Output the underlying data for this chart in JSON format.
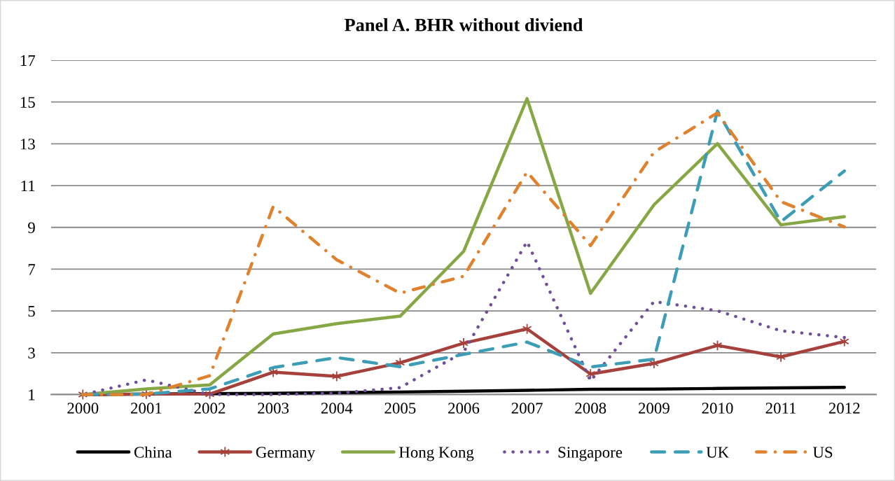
{
  "chart_data": {
    "type": "line",
    "title": "Panel A. BHR without diviend",
    "categories": [
      "2000",
      "2001",
      "2002",
      "2003",
      "2004",
      "2005",
      "2006",
      "2007",
      "2008",
      "2009",
      "2010",
      "2011",
      "2012"
    ],
    "series": [
      {
        "name": "China",
        "color": "#000000",
        "line_style": "solid",
        "marker": "none",
        "values": [
          1.0,
          1.02,
          1.04,
          1.06,
          1.09,
          1.12,
          1.16,
          1.2,
          1.25,
          1.26,
          1.29,
          1.32,
          1.34
        ]
      },
      {
        "name": "Germany",
        "color": "#a5403b",
        "line_style": "solid",
        "marker": "cross",
        "values": [
          1.0,
          1.02,
          1.02,
          2.07,
          1.87,
          2.52,
          3.46,
          4.14,
          1.98,
          2.49,
          3.35,
          2.8,
          3.54
        ]
      },
      {
        "name": "Hong Kong",
        "color": "#86a844",
        "line_style": "solid",
        "marker": "none",
        "values": [
          1.0,
          1.27,
          1.46,
          3.9,
          4.39,
          4.75,
          7.85,
          15.16,
          5.84,
          10.08,
          13.01,
          9.12,
          9.51
        ]
      },
      {
        "name": "Singapore",
        "color": "#6f4f9c",
        "line_style": "dotted",
        "marker": "none",
        "values": [
          1.0,
          1.7,
          1.0,
          1.0,
          1.06,
          1.33,
          3.03,
          8.32,
          1.65,
          5.45,
          5.01,
          4.05,
          3.73
        ]
      },
      {
        "name": "UK",
        "color": "#3b9db6",
        "line_style": "dashed",
        "marker": "none",
        "values": [
          1.0,
          1.02,
          1.27,
          2.29,
          2.77,
          2.33,
          2.92,
          3.51,
          2.32,
          2.69,
          14.57,
          9.27,
          11.7
        ]
      },
      {
        "name": "US",
        "color": "#e0812e",
        "line_style": "dashdot",
        "marker": "none",
        "values": [
          1.0,
          1.0,
          1.9,
          10.0,
          7.45,
          5.85,
          6.66,
          11.65,
          8.13,
          12.6,
          14.48,
          10.23,
          9.02
        ]
      }
    ],
    "ylim": [
      1,
      17
    ],
    "yticks": [
      1,
      3,
      5,
      7,
      9,
      11,
      13,
      15,
      17
    ],
    "grid": "y",
    "legend": "bottom"
  }
}
